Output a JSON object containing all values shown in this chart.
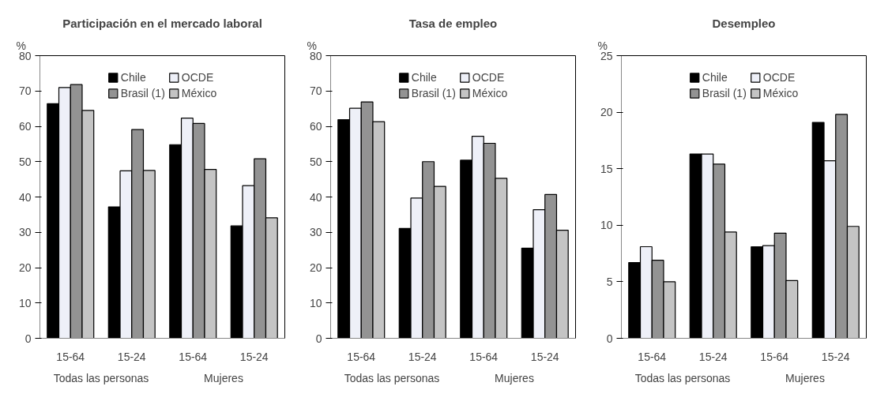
{
  "chart_data": [
    {
      "type": "bar",
      "title": "Participación en el mercado laboral",
      "ylabel": "%",
      "categories": [
        "15-64",
        "15-24",
        "15-64",
        "15-24"
      ],
      "ylim": [
        0,
        80
      ],
      "yticks": [
        0,
        10,
        20,
        30,
        40,
        50,
        60,
        70,
        80
      ],
      "grid": false,
      "legend": "top",
      "annotations": [
        "Todas las personas",
        "Mujeres"
      ],
      "series": [
        {
          "name": "Chile",
          "color": "#000000",
          "values": [
            66.4,
            37.2,
            54.8,
            31.8
          ]
        },
        {
          "name": "OCDE",
          "color": "#eef0f8",
          "values": [
            71.0,
            47.4,
            62.3,
            43.2
          ]
        },
        {
          "name": "Brasil (1)",
          "color": "#939393",
          "values": [
            71.8,
            59.1,
            60.8,
            50.8
          ]
        },
        {
          "name": "México",
          "color": "#c4c4c4",
          "values": [
            64.5,
            47.5,
            47.8,
            34.1
          ]
        }
      ]
    },
    {
      "type": "bar",
      "title": "Tasa de empleo",
      "ylabel": "%",
      "categories": [
        "15-64",
        "15-24",
        "15-64",
        "15-24"
      ],
      "ylim": [
        0,
        80
      ],
      "yticks": [
        0,
        10,
        20,
        30,
        40,
        50,
        60,
        70,
        80
      ],
      "grid": false,
      "legend": "top",
      "annotations": [
        "Todas las personas",
        "Mujeres"
      ],
      "series": [
        {
          "name": "Chile",
          "color": "#000000",
          "values": [
            61.9,
            31.1,
            50.4,
            25.5
          ]
        },
        {
          "name": "OCDE",
          "color": "#eef0f8",
          "values": [
            65.1,
            39.7,
            57.2,
            36.4
          ]
        },
        {
          "name": "Brasil (1)",
          "color": "#939393",
          "values": [
            66.9,
            50.0,
            55.2,
            40.7
          ]
        },
        {
          "name": "México",
          "color": "#c4c4c4",
          "values": [
            61.3,
            43.0,
            45.3,
            30.6
          ]
        }
      ]
    },
    {
      "type": "bar",
      "title": "Desempleo",
      "ylabel": "%",
      "categories": [
        "15-64",
        "15-24",
        "15-64",
        "15-24"
      ],
      "ylim": [
        0,
        25
      ],
      "yticks": [
        0,
        5,
        10,
        15,
        20,
        25
      ],
      "grid": false,
      "legend": "top",
      "annotations": [
        "Todas las personas",
        "Mujeres"
      ],
      "series": [
        {
          "name": "Chile",
          "color": "#000000",
          "values": [
            6.7,
            16.3,
            8.1,
            19.1
          ]
        },
        {
          "name": "OCDE",
          "color": "#eef0f8",
          "values": [
            8.1,
            16.3,
            8.2,
            15.7
          ]
        },
        {
          "name": "Brasil (1)",
          "color": "#939393",
          "values": [
            6.9,
            15.4,
            9.3,
            19.8
          ]
        },
        {
          "name": "México",
          "color": "#c4c4c4",
          "values": [
            5.0,
            9.4,
            5.1,
            9.9
          ]
        }
      ]
    }
  ]
}
